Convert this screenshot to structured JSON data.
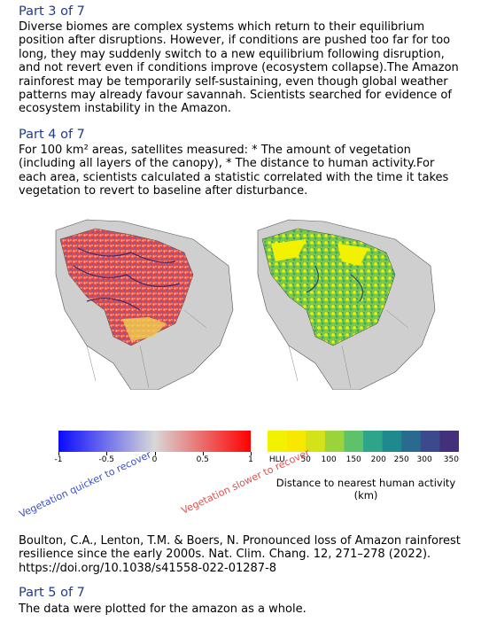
{
  "part3": {
    "heading": "Part 3 of 7",
    "body": "Diverse biomes are complex systems which return to their equilibrium position after disruptions. However, if conditions are pushed too far for too long, they may suddenly switch to a new equilibrium following disruption, and not revert even if conditions improve (ecosystem collapse).The Amazon rainforest may be temporarily self-sustaining, even though global weather patterns may already favour savannah. Scientists searched for evidence of ecosystem instability in the Amazon."
  },
  "part4": {
    "heading": "Part 4 of 7",
    "body": "For 100 km² areas, satellites measured: * The amount of vegetation (including all layers of the canopy),  * The distance to human activity.For each area, scientists calculated a statistic correlated with the time it takes vegetation to revert to baseline after disturbance."
  },
  "figure": {
    "left_scale": {
      "ticks": [
        "-1",
        "-0.5",
        "0",
        "0.5",
        "1"
      ],
      "label_quicker": "Vegetation quicker to recover",
      "label_slower": "Vegetation slower to recover",
      "color_low": "#0a0aff",
      "color_mid": "#d8d8d8",
      "color_high": "#ff0000"
    },
    "right_scale": {
      "ticks": [
        "HLU",
        "50",
        "100",
        "150",
        "200",
        "250",
        "300",
        "350"
      ],
      "label": "Distance to nearest human activity (km)",
      "colors": [
        "#f2f200",
        "#f8e800",
        "#d4e21a",
        "#9bd33b",
        "#5ec26a",
        "#2ea58a",
        "#1f8a8e",
        "#2a6a8e",
        "#3a4a8c",
        "#44307a"
      ]
    }
  },
  "citation": "Boulton, C.A., Lenton, T.M. & Boers, N. Pronounced loss of Amazon rainforest resilience since the early 2000s. Nat. Clim. Chang. 12, 271–278 (2022). https://doi.org/10.1038/s41558-022-01287-8",
  "part5": {
    "heading": "Part 5 of 7",
    "body": "The data were plotted for the amazon as a whole."
  }
}
